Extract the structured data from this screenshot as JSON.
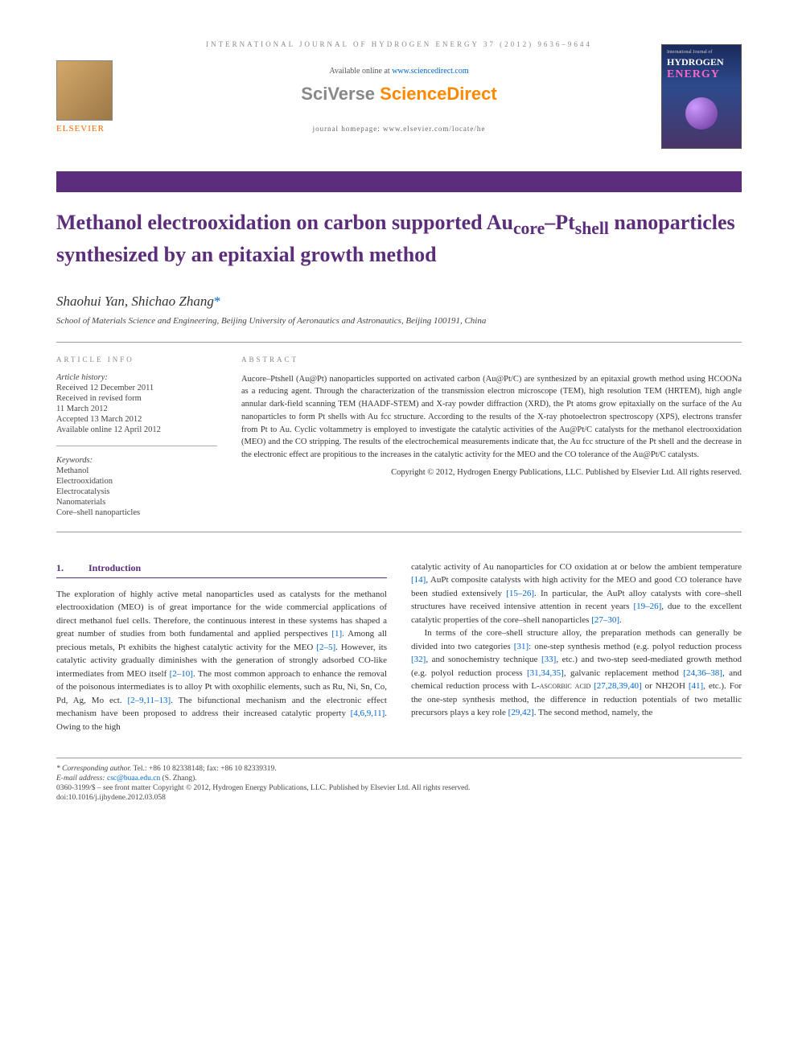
{
  "colors": {
    "purple": "#5b2d7a",
    "link": "#0066cc",
    "orange": "#ff6600",
    "grey_text": "#888888",
    "body_text": "#333333"
  },
  "typography": {
    "title_fontsize": 26,
    "body_fontsize": 11,
    "abstract_fontsize": 10.5,
    "header_fontsize": 9,
    "authors_fontsize": 17
  },
  "header": {
    "journal_banner": "INTERNATIONAL JOURNAL OF HYDROGEN ENERGY 37 (2012) 9636–9644",
    "available_prefix": "Available online at ",
    "available_link": "www.sciencedirect.com",
    "sciverse_brand": "SciVerse ",
    "sciverse_product": "ScienceDirect",
    "homepage": "journal homepage: www.elsevier.com/locate/he",
    "elsevier_label": "ELSEVIER",
    "cover": {
      "line1": "International Journal of",
      "line2": "HYDROGEN",
      "line3": "ENERGY"
    }
  },
  "article": {
    "title_pre": "Methanol electrooxidation on carbon supported Au",
    "title_sub1": "core",
    "title_mid": "–Pt",
    "title_sub2": "shell",
    "title_post": " nanoparticles synthesized by an epitaxial growth method",
    "authors_1": "Shaohui Yan, Shichao Zhang",
    "star": "*",
    "affiliation": "School of Materials Science and Engineering, Beijing University of Aeronautics and Astronautics, Beijing 100191, China"
  },
  "info": {
    "heading": "ARTICLE INFO",
    "history_label": "Article history:",
    "received": "Received 12 December 2011",
    "revised_label": "Received in revised form",
    "revised_date": "11 March 2012",
    "accepted": "Accepted 13 March 2012",
    "online": "Available online 12 April 2012",
    "keywords_label": "Keywords:",
    "keywords": [
      "Methanol",
      "Electrooxidation",
      "Electrocatalysis",
      "Nanomaterials",
      "Core–shell nanoparticles"
    ]
  },
  "abstract": {
    "heading": "ABSTRACT",
    "text": "Aucore–Ptshell (Au@Pt) nanoparticles supported on activated carbon (Au@Pt/C) are synthesized by an epitaxial growth method using HCOONa as a reducing agent. Through the characterization of the transmission electron microscope (TEM), high resolution TEM (HRTEM), high angle annular dark-field scanning TEM (HAADF-STEM) and X-ray powder diffraction (XRD), the Pt atoms grow epitaxially on the surface of the Au nanoparticles to form Pt shells with Au fcc structure. According to the results of the X-ray photoelectron spectroscopy (XPS), electrons transfer from Pt to Au. Cyclic voltammetry is employed to investigate the catalytic activities of the Au@Pt/C catalysts for the methanol electrooxidation (MEO) and the CO stripping. The results of the electrochemical measurements indicate that, the Au fcc structure of the Pt shell and the decrease in the electronic effect are propitious to the increases in the catalytic activity for the MEO and the CO tolerance of the Au@Pt/C catalysts.",
    "copyright": "Copyright © 2012, Hydrogen Energy Publications, LLC. Published by Elsevier Ltd. All rights reserved."
  },
  "section1": {
    "num": "1.",
    "title": "Introduction"
  },
  "body": {
    "col1_p1_a": "The exploration of highly active metal nanoparticles used as catalysts for the methanol electrooxidation (MEO) is of great importance for the wide commercial applications of direct methanol fuel cells. Therefore, the continuous interest in these systems has shaped a great number of studies from both fundamental and applied perspectives ",
    "r1": "[1]",
    "col1_p1_b": ". Among all precious metals, Pt exhibits the highest catalytic activity for the MEO ",
    "r2": "[2–5]",
    "col1_p1_c": ". However, its catalytic activity gradually diminishes with the generation of strongly adsorbed CO-like intermediates from MEO itself ",
    "r3": "[2–10]",
    "col1_p1_d": ". The most common approach to enhance the removal of the poisonous intermediates is to alloy Pt with oxophilic elements, such as Ru, Ni, Sn, Co, Pd, Ag, Mo ect. ",
    "r4": "[2–9,11–13]",
    "col1_p1_e": ". The bifunctional mechanism and the electronic effect mechanism have been proposed to address their increased catalytic property ",
    "r5": "[4,6,9,11]",
    "col1_p1_f": ". Owing to the high",
    "col2_p1_a": "catalytic activity of Au nanoparticles for CO oxidation at or below the ambient temperature ",
    "r6": "[14]",
    "col2_p1_b": ", AuPt composite catalysts with high activity for the MEO and good CO tolerance have been studied extensively ",
    "r7": "[15–26]",
    "col2_p1_c": ". In particular, the AuPt alloy catalysts with core–shell structures have received intensive attention in recent years ",
    "r8": "[19–26]",
    "col2_p1_d": ", due to the excellent catalytic properties of the core–shell nanoparticles ",
    "r9": "[27–30]",
    "col2_p1_e": ".",
    "col2_p2_a": "In terms of the core–shell structure alloy, the preparation methods can generally be divided into two categories ",
    "r10": "[31]",
    "col2_p2_b": ": one-step synthesis method (e.g. polyol reduction process ",
    "r11": "[32]",
    "col2_p2_c": ", and sonochemistry technique ",
    "r12": "[33]",
    "col2_p2_d": ", etc.) and two-step seed-mediated growth method (e.g. polyol reduction process ",
    "r13": "[31,34,35]",
    "col2_p2_e": ", galvanic replacement method ",
    "r14": "[24,36–38]",
    "col2_p2_f": ", and chemical reduction process with ",
    "ascorbic": "L-ascorbic acid ",
    "r15": "[27,28,39,40]",
    "col2_p2_g": " or NH2OH ",
    "r16": "[41]",
    "col2_p2_h": ", etc.). For the one-step synthesis method, the difference in reduction potentials of two metallic precursors plays a key role ",
    "r17": "[29,42]",
    "col2_p2_i": ". The second method, namely, the"
  },
  "footer": {
    "corr_label": "* Corresponding author.",
    "corr_info": " Tel.: +86 10 82338148; fax: +86 10 82339319.",
    "email_label": "E-mail address: ",
    "email": "csc@buaa.edu.cn",
    "email_suffix": " (S. Zhang).",
    "issn_line": "0360-3199/$ – see front matter Copyright © 2012, Hydrogen Energy Publications, LLC. Published by Elsevier Ltd. All rights reserved.",
    "doi": "doi:10.1016/j.ijhydene.2012.03.058"
  }
}
